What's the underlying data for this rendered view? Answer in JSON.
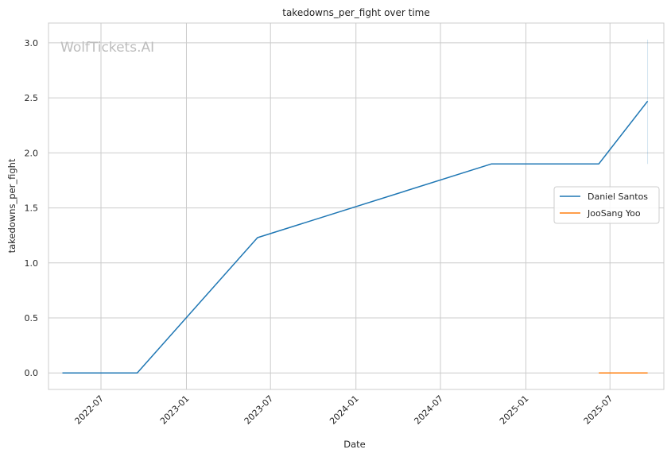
{
  "chart_data": {
    "type": "line",
    "title": "takedowns_per_fight over time",
    "xlabel": "Date",
    "ylabel": "takedowns_per_fight",
    "watermark": "WolfTickets.AI",
    "x_type": "date",
    "xlim": [
      "2022-03-10",
      "2025-10-25"
    ],
    "ylim": [
      -0.15,
      3.18
    ],
    "x_ticks": [
      "2022-07-01",
      "2023-01-01",
      "2023-07-01",
      "2024-01-01",
      "2024-07-01",
      "2025-01-01",
      "2025-07-01"
    ],
    "x_tick_labels": [
      "2022-07",
      "2023-01",
      "2023-07",
      "2024-01",
      "2024-07",
      "2025-01",
      "2025-07"
    ],
    "y_ticks": [
      0.0,
      0.5,
      1.0,
      1.5,
      2.0,
      2.5,
      3.0
    ],
    "y_tick_labels": [
      "0.0",
      "0.5",
      "1.0",
      "1.5",
      "2.0",
      "2.5",
      "3.0"
    ],
    "grid": true,
    "legend_position": "center-right",
    "series": [
      {
        "name": "Daniel Santos",
        "color": "#1f77b4",
        "points": [
          {
            "x": "2022-04-09",
            "y": 0.0
          },
          {
            "x": "2022-09-17",
            "y": 0.0
          },
          {
            "x": "2023-06-03",
            "y": 1.23
          },
          {
            "x": "2024-10-19",
            "y": 1.9
          },
          {
            "x": "2025-06-07",
            "y": 1.9
          },
          {
            "x": "2025-09-20",
            "y": 2.47
          }
        ]
      },
      {
        "name": "JooSang Yoo",
        "color": "#ff7f0e",
        "points": [
          {
            "x": "2025-06-07",
            "y": 0.0
          },
          {
            "x": "2025-09-20",
            "y": 0.0
          }
        ]
      }
    ],
    "range_band": {
      "x": "2025-09-20",
      "y_low": 1.9,
      "y_high": 3.03
    }
  }
}
